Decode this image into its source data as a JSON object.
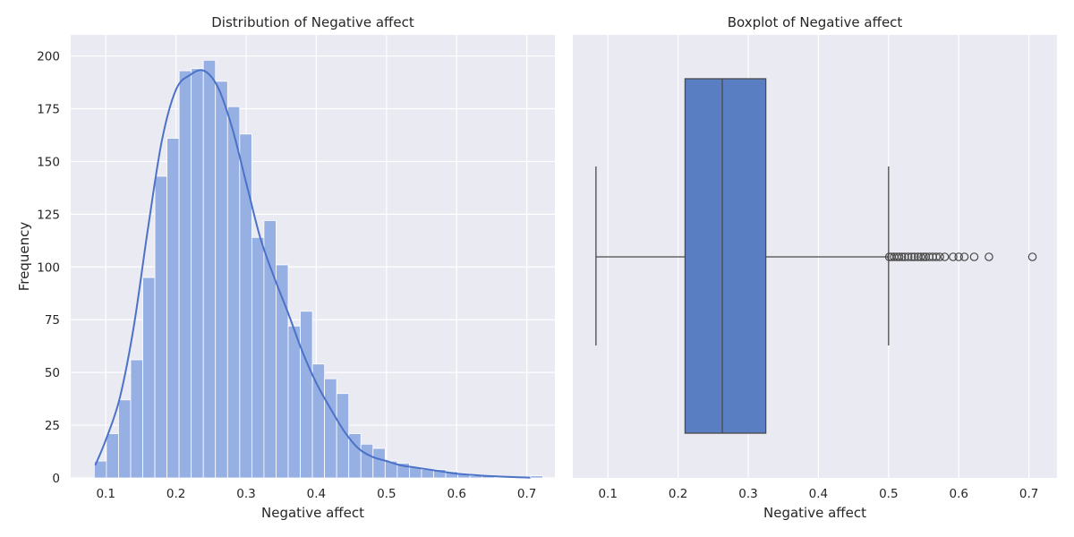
{
  "colors": {
    "background": "#eaeaf2",
    "grid": "#ffffff",
    "bar_fill": "#97b0e3",
    "kde_line": "#4c72c8",
    "box_fill": "#5a7ec2",
    "box_edge": "#4a4a4a",
    "outlier_edge": "#4a4a4a"
  },
  "chart_data": [
    {
      "type": "histogram",
      "title": "Distribution of Negative affect",
      "xlabel": "Negative affect",
      "ylabel": "Frequency",
      "xlim": [
        0.05,
        0.74
      ],
      "ylim": [
        0,
        210
      ],
      "xticks": [
        0.1,
        0.2,
        0.3,
        0.4,
        0.5,
        0.6,
        0.7
      ],
      "xtick_labels": [
        "0.1",
        "0.2",
        "0.3",
        "0.4",
        "0.5",
        "0.6",
        "0.7"
      ],
      "yticks": [
        0,
        25,
        50,
        75,
        100,
        125,
        150,
        175,
        200
      ],
      "ytick_labels": [
        "0",
        "25",
        "50",
        "75",
        "100",
        "125",
        "150",
        "175",
        "200"
      ],
      "grid": true,
      "bin_start": 0.0836,
      "bin_width": 0.01727,
      "counts": [
        8,
        21,
        37,
        56,
        95,
        143,
        161,
        193,
        194,
        198,
        188,
        176,
        163,
        114,
        122,
        101,
        72,
        79,
        54,
        47,
        40,
        21,
        16,
        14,
        8,
        7,
        5,
        4,
        4,
        3,
        2,
        1,
        1,
        0,
        0,
        0,
        1
      ],
      "kde": {
        "x": [
          0.085,
          0.1,
          0.12,
          0.14,
          0.16,
          0.18,
          0.2,
          0.22,
          0.24,
          0.26,
          0.28,
          0.3,
          0.32,
          0.34,
          0.36,
          0.38,
          0.4,
          0.42,
          0.44,
          0.46,
          0.48,
          0.5,
          0.52,
          0.54,
          0.56,
          0.58,
          0.6,
          0.62,
          0.64,
          0.66,
          0.68,
          0.7,
          0.705
        ],
        "y": [
          6,
          18,
          38,
          72,
          118,
          160,
          184,
          191,
          193,
          185,
          166,
          140,
          114,
          95,
          78,
          60,
          45,
          33,
          22,
          14,
          10,
          8,
          6,
          5,
          4,
          3,
          2,
          1.5,
          1,
          0.7,
          0.4,
          0.2,
          0.1
        ]
      }
    },
    {
      "type": "boxplot",
      "title": "Boxplot of Negative affect",
      "xlabel": "Negative affect",
      "xlim": [
        0.05,
        0.74
      ],
      "xticks": [
        0.1,
        0.2,
        0.3,
        0.4,
        0.5,
        0.6,
        0.7
      ],
      "xtick_labels": [
        "0.1",
        "0.2",
        "0.3",
        "0.4",
        "0.5",
        "0.6",
        "0.7"
      ],
      "grid": true,
      "whisker_low": 0.083,
      "q1": 0.21,
      "median": 0.263,
      "q3": 0.325,
      "whisker_high": 0.5,
      "outliers": [
        0.501,
        0.504,
        0.508,
        0.512,
        0.515,
        0.519,
        0.523,
        0.528,
        0.533,
        0.537,
        0.542,
        0.546,
        0.55,
        0.553,
        0.558,
        0.563,
        0.568,
        0.573,
        0.58,
        0.592,
        0.6,
        0.608,
        0.622,
        0.643,
        0.705
      ]
    }
  ]
}
